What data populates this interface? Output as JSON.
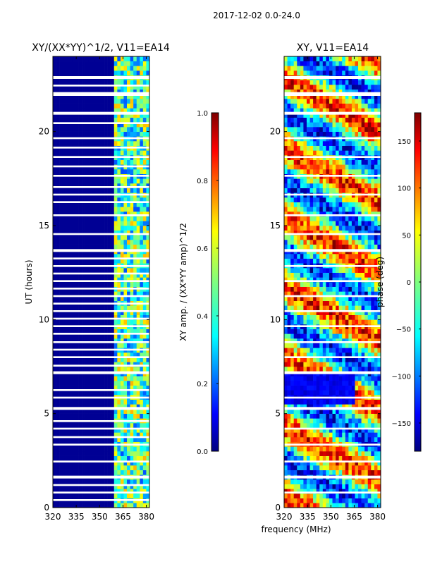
{
  "figure_title": "2017-12-02 0.0-24.0",
  "chart_data": [
    {
      "type": "heatmap",
      "title": "XY/(XX*YY)^1/2, V11=EA14",
      "xlabel": "",
      "ylabel": "UT (hours)",
      "x_ticks": [
        320,
        335,
        350,
        365,
        380
      ],
      "y_ticks": [
        0,
        5,
        10,
        15,
        20
      ],
      "xlim": [
        320,
        382
      ],
      "ylim": [
        0,
        24
      ],
      "colorbar": {
        "label": "XY amp. / (XX*YY amp)^1/2",
        "ticks": [
          "0.0",
          "0.2",
          "0.4",
          "0.6",
          "0.8",
          "1.0"
        ],
        "range": [
          0,
          1
        ]
      },
      "description_values": {
        "low_band_level": 0.02,
        "high_band_start_mhz": 360,
        "high_band_level": 0.45
      },
      "flagged_gaps_ut": [
        [
          0.35,
          0.45
        ],
        [
          0.75,
          0.85
        ],
        [
          1.15,
          1.25
        ],
        [
          1.55,
          1.7
        ],
        [
          2.4,
          2.5
        ],
        [
          3.3,
          3.4
        ],
        [
          3.7,
          3.8
        ],
        [
          4.15,
          4.25
        ],
        [
          4.55,
          4.65
        ],
        [
          5.2,
          5.35
        ],
        [
          5.8,
          5.9
        ],
        [
          6.2,
          6.3
        ],
        [
          7.1,
          7.25
        ],
        [
          7.5,
          7.6
        ],
        [
          7.95,
          8.05
        ],
        [
          8.35,
          8.45
        ],
        [
          8.75,
          8.85
        ],
        [
          9.2,
          9.3
        ],
        [
          9.6,
          9.7
        ],
        [
          10.0,
          10.1
        ],
        [
          10.4,
          10.5
        ],
        [
          10.8,
          10.9
        ],
        [
          11.2,
          11.3
        ],
        [
          11.6,
          11.7
        ],
        [
          12.0,
          12.1
        ],
        [
          12.4,
          12.5
        ],
        [
          12.8,
          12.9
        ],
        [
          13.2,
          13.3
        ],
        [
          13.6,
          13.75
        ],
        [
          14.5,
          14.6
        ],
        [
          15.5,
          15.6
        ],
        [
          16.2,
          16.3
        ],
        [
          16.6,
          16.7
        ],
        [
          17.0,
          17.1
        ],
        [
          17.6,
          17.7
        ],
        [
          18.1,
          18.2
        ],
        [
          18.6,
          18.7
        ],
        [
          19.1,
          19.2
        ],
        [
          19.6,
          19.7
        ],
        [
          20.4,
          20.5
        ],
        [
          20.9,
          21.05
        ],
        [
          21.9,
          22.1
        ],
        [
          22.4,
          22.5
        ],
        [
          22.8,
          22.95
        ]
      ]
    },
    {
      "type": "heatmap",
      "title": "XY, V11=EA14",
      "xlabel": "frequency (MHz)",
      "ylabel": "",
      "x_ticks": [
        320,
        335,
        350,
        365,
        380
      ],
      "y_ticks": [
        0,
        5,
        10,
        15,
        20
      ],
      "xlim": [
        320,
        382
      ],
      "ylim": [
        0,
        24
      ],
      "colorbar": {
        "label": "phase (deg)",
        "ticks": [
          "−150",
          "−100",
          "−50",
          "0",
          "50",
          "100",
          "150"
        ],
        "tick_values": [
          -150,
          -100,
          -50,
          0,
          50,
          100,
          150
        ],
        "range": [
          -180,
          180
        ]
      },
      "description_values": {
        "low_phase_block_ut": [
          5.5,
          7.3
        ],
        "low_phase_block_deg": -140
      },
      "flagged_gaps_ut": [
        [
          0.75,
          0.85
        ],
        [
          1.55,
          1.7
        ],
        [
          2.4,
          2.5
        ],
        [
          3.3,
          3.4
        ],
        [
          4.15,
          4.25
        ],
        [
          5.2,
          5.35
        ],
        [
          5.8,
          5.9
        ],
        [
          7.1,
          7.25
        ],
        [
          7.95,
          8.05
        ],
        [
          8.75,
          8.85
        ],
        [
          9.6,
          9.7
        ],
        [
          10.4,
          10.5
        ],
        [
          11.2,
          11.3
        ],
        [
          12.0,
          12.1
        ],
        [
          12.8,
          12.9
        ],
        [
          13.6,
          13.75
        ],
        [
          14.5,
          14.6
        ],
        [
          15.5,
          15.6
        ],
        [
          16.6,
          16.7
        ],
        [
          17.6,
          17.7
        ],
        [
          18.6,
          18.7
        ],
        [
          19.6,
          19.7
        ],
        [
          20.9,
          21.05
        ],
        [
          21.9,
          22.1
        ],
        [
          22.8,
          22.95
        ]
      ]
    }
  ]
}
